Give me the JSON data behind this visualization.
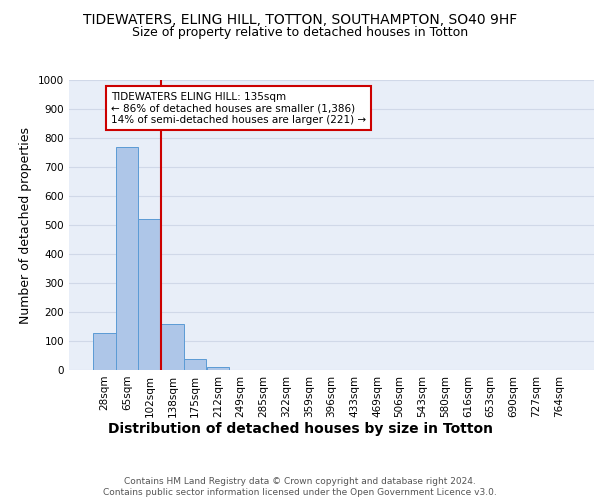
{
  "title": "TIDEWATERS, ELING HILL, TOTTON, SOUTHAMPTON, SO40 9HF",
  "subtitle": "Size of property relative to detached houses in Totton",
  "xlabel": "Distribution of detached houses by size in Totton",
  "ylabel": "Number of detached properties",
  "categories": [
    "28sqm",
    "65sqm",
    "102sqm",
    "138sqm",
    "175sqm",
    "212sqm",
    "249sqm",
    "285sqm",
    "322sqm",
    "359sqm",
    "396sqm",
    "433sqm",
    "469sqm",
    "506sqm",
    "543sqm",
    "580sqm",
    "616sqm",
    "653sqm",
    "690sqm",
    "727sqm",
    "764sqm"
  ],
  "values": [
    128,
    770,
    521,
    158,
    38,
    11,
    0,
    0,
    0,
    0,
    0,
    0,
    0,
    0,
    0,
    0,
    0,
    0,
    0,
    0,
    0
  ],
  "bar_color": "#aec6e8",
  "bar_edge_color": "#5b9bd5",
  "vline_x": 2.5,
  "vline_color": "#cc0000",
  "annotation_text": "TIDEWATERS ELING HILL: 135sqm\n← 86% of detached houses are smaller (1,386)\n14% of semi-detached houses are larger (221) →",
  "annotation_box_color": "#ffffff",
  "annotation_box_edge_color": "#cc0000",
  "ylim": [
    0,
    1000
  ],
  "yticks": [
    0,
    100,
    200,
    300,
    400,
    500,
    600,
    700,
    800,
    900,
    1000
  ],
  "grid_color": "#d0d8e8",
  "background_color": "#e8eef8",
  "footer": "Contains HM Land Registry data © Crown copyright and database right 2024.\nContains public sector information licensed under the Open Government Licence v3.0.",
  "title_fontsize": 10,
  "subtitle_fontsize": 9,
  "xlabel_fontsize": 10,
  "ylabel_fontsize": 9,
  "tick_fontsize": 7.5,
  "annotation_fontsize": 7.5,
  "footer_fontsize": 6.5
}
